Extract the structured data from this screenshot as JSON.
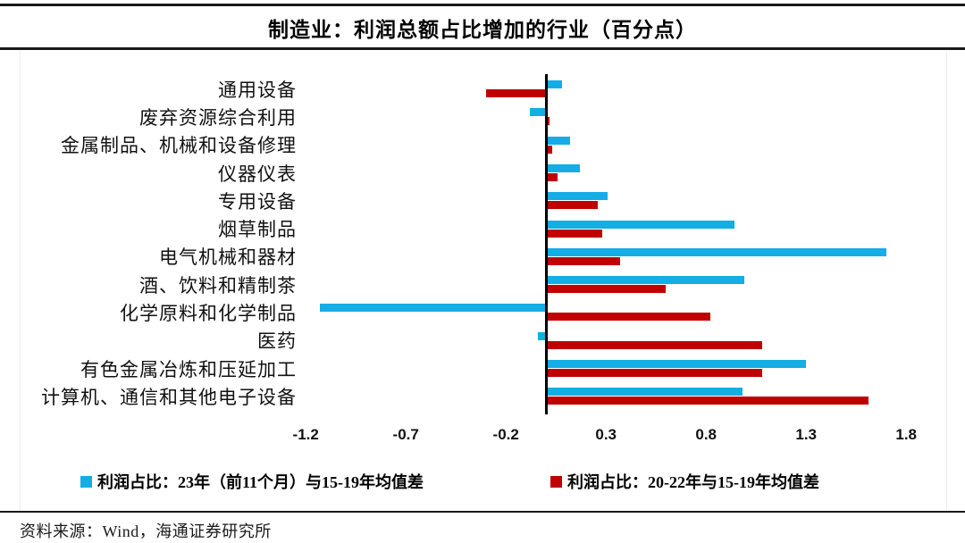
{
  "title": "制造业：利润总额占比增加的行业（百分点）",
  "source": "资料来源：Wind，海通证券研究所",
  "colors": {
    "blue": "#14ADE5",
    "red": "#C00000",
    "axis": "#000000"
  },
  "legend": {
    "items": [
      {
        "label": "利润占比：23年（前11个月）与15-19年均值差",
        "color": "#14ADE5"
      },
      {
        "label": "利润占比：20-22年与15-19年均值差",
        "color": "#C00000"
      }
    ]
  },
  "chart_data": {
    "type": "bar",
    "orientation": "horizontal",
    "title": "制造业：利润总额占比增加的行业（百分点）",
    "categories": [
      "通用设备",
      "废弃资源综合利用",
      "金属制品、机械和设备修理",
      "仪器仪表",
      "专用设备",
      "烟草制品",
      "电气机械和器材",
      "酒、饮料和精制茶",
      "化学原料和化学制品",
      "医药",
      "有色金属冶炼和压延加工",
      "计算机、通信和其他电子设备"
    ],
    "series": [
      {
        "name": "利润占比：23年（前11个月）与15-19年均值差",
        "color": "#14ADE5",
        "values": [
          0.08,
          -0.08,
          0.12,
          0.17,
          0.31,
          0.94,
          1.7,
          0.99,
          -1.13,
          -0.04,
          1.3,
          0.98
        ]
      },
      {
        "name": "利润占比：20-22年与15-19年均值差",
        "color": "#C00000",
        "values": [
          -0.3,
          0.02,
          0.03,
          0.06,
          0.26,
          0.28,
          0.37,
          0.6,
          0.82,
          1.08,
          1.08,
          1.61
        ]
      }
    ],
    "x_ticks": [
      -1.2,
      -0.7,
      -0.2,
      0.3,
      0.8,
      1.3,
      1.8
    ],
    "xlim": [
      -1.45,
      2.0
    ],
    "xlabel": "",
    "ylabel": "",
    "unit": "百分点",
    "grid": false,
    "legend_position": "bottom"
  }
}
